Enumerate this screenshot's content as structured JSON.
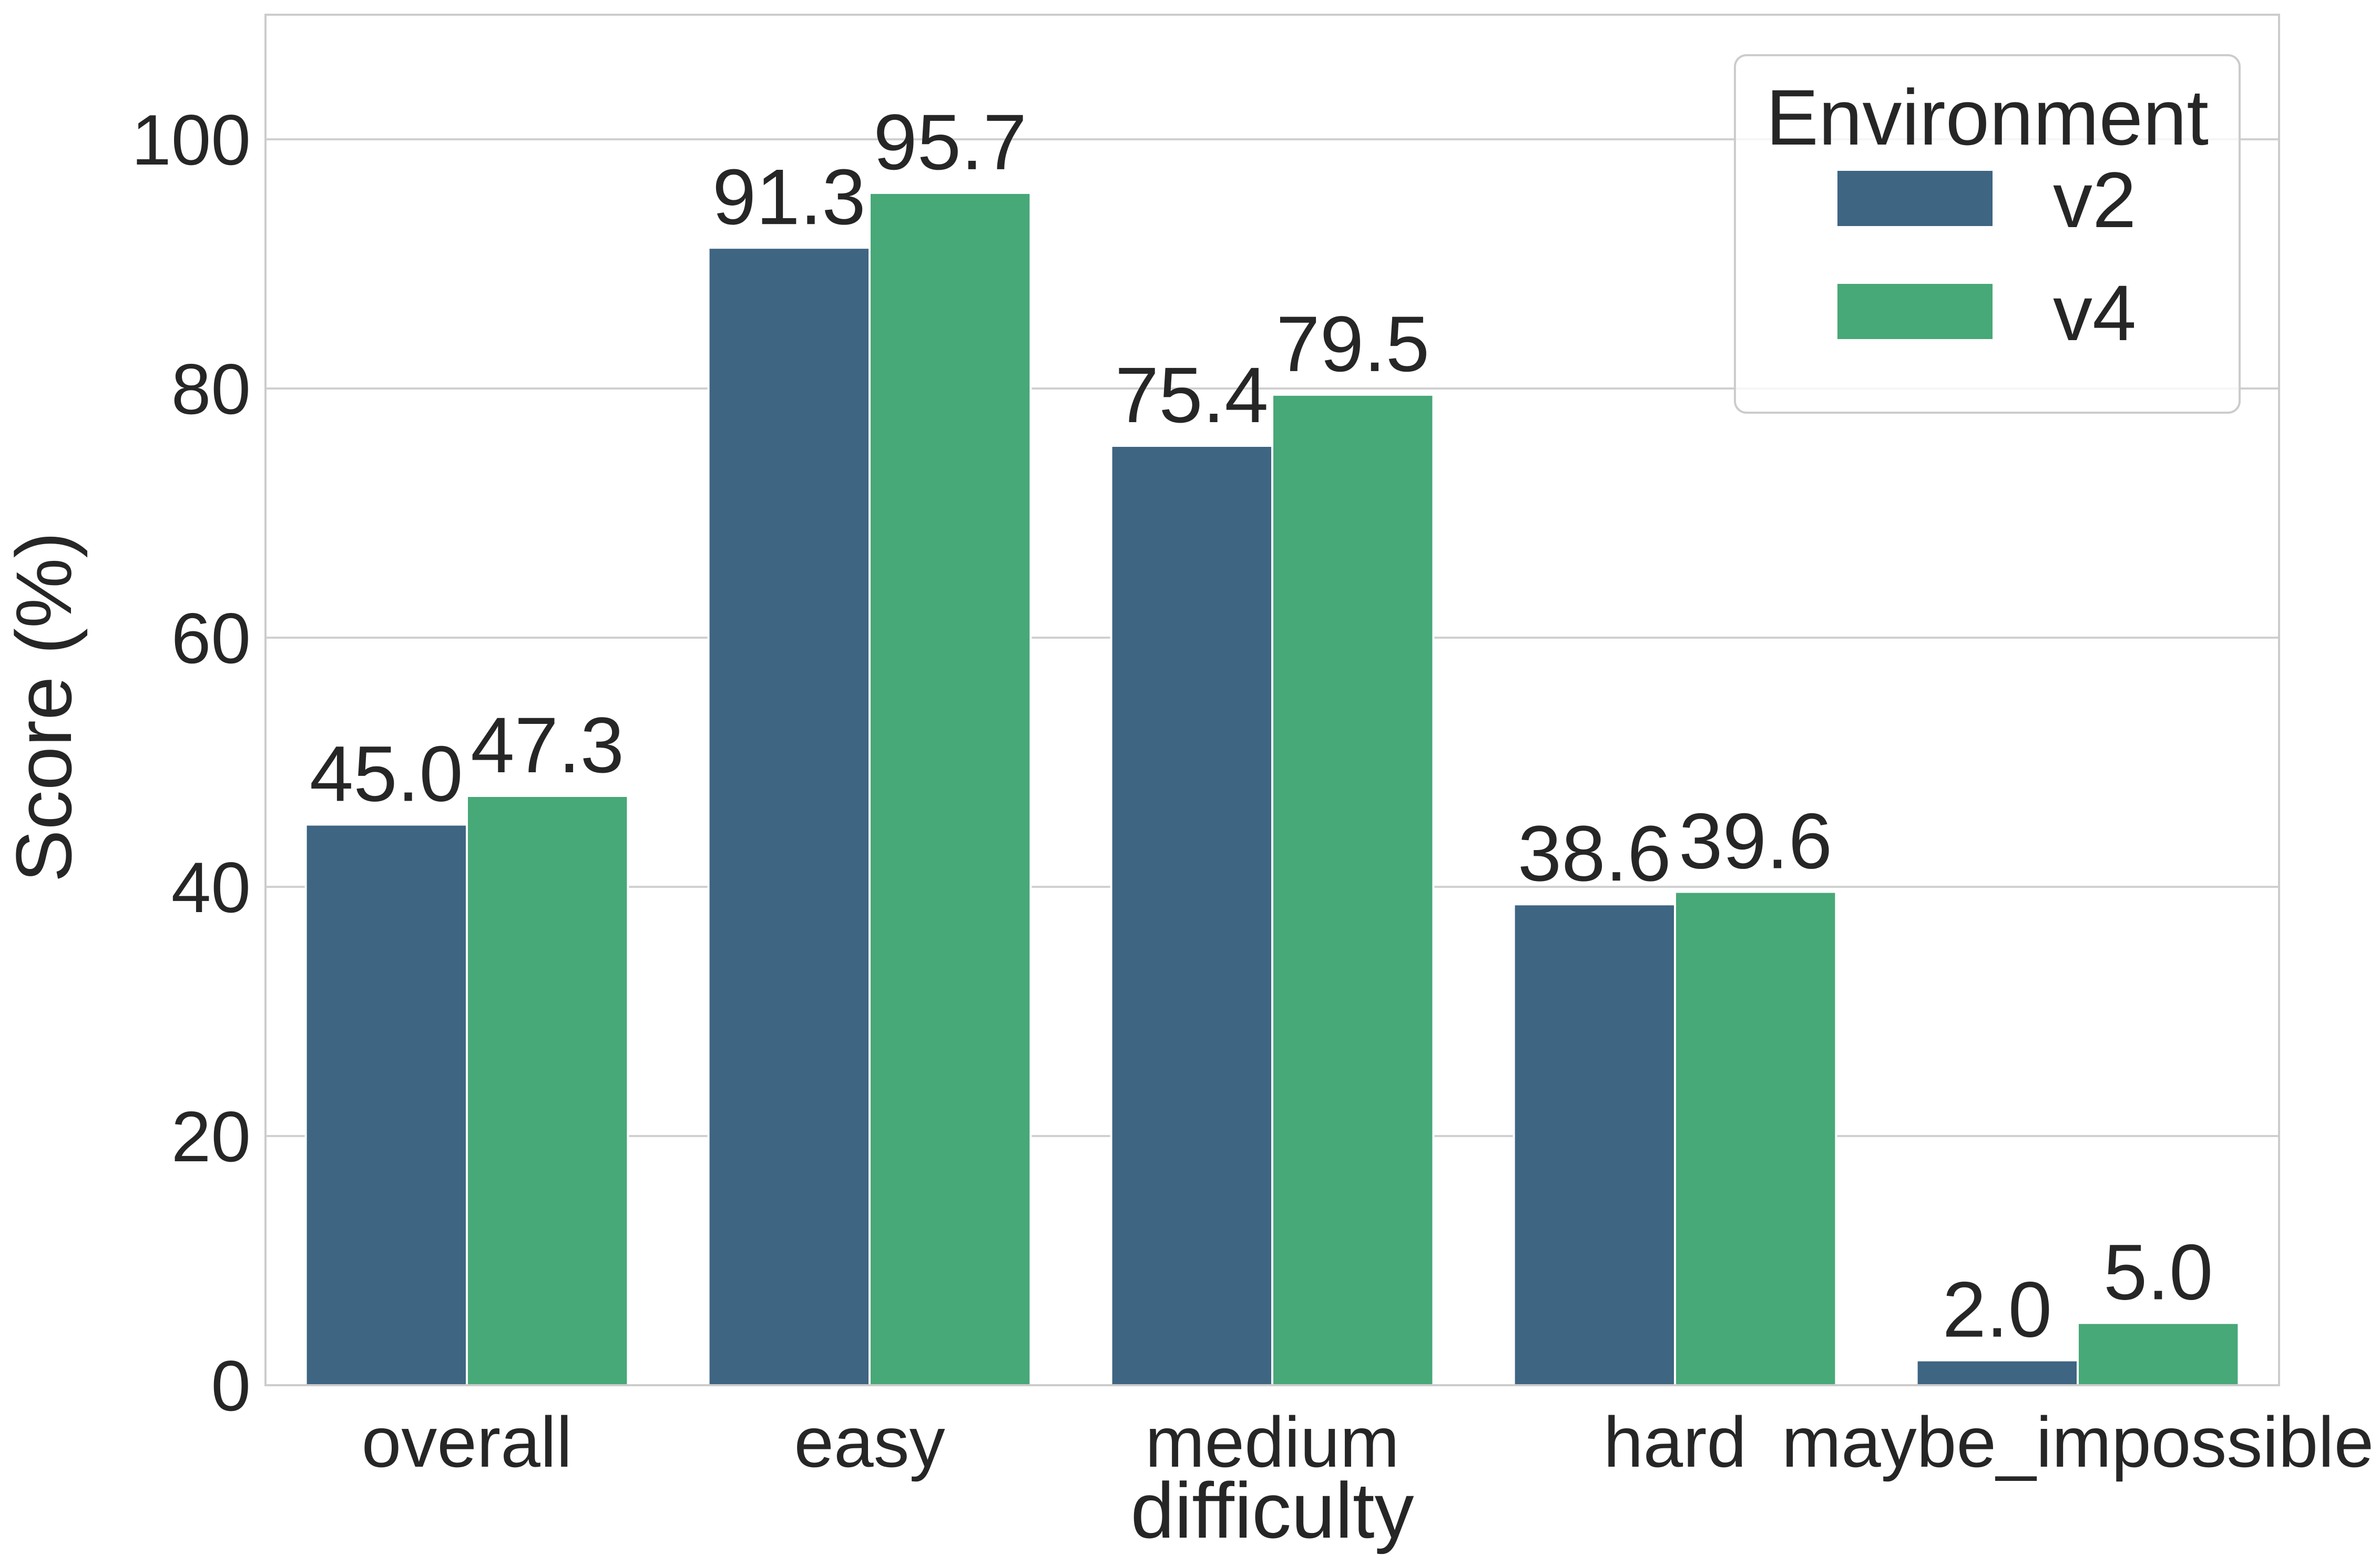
{
  "chart_data": {
    "type": "bar",
    "xlabel": "difficulty",
    "ylabel": "Score (%)",
    "categories": [
      "overall",
      "easy",
      "medium",
      "hard",
      "maybe_impossible"
    ],
    "series": [
      {
        "name": "v2",
        "color": "#3e6582",
        "values": [
          45.0,
          91.3,
          75.4,
          38.6,
          2.0
        ]
      },
      {
        "name": "v4",
        "color": "#47a878",
        "values": [
          47.3,
          95.7,
          79.5,
          39.6,
          5.0
        ]
      }
    ],
    "value_labels": [
      [
        "45.0",
        "91.3",
        "75.4",
        "38.6",
        "2.0"
      ],
      [
        "47.3",
        "95.7",
        "79.5",
        "39.6",
        "5.0"
      ]
    ],
    "yticks": [
      "0",
      "20",
      "40",
      "60",
      "80",
      "100"
    ],
    "ylim": [
      0,
      110
    ],
    "grid": true,
    "legend": {
      "title": "Environment",
      "position": "top-right"
    }
  }
}
